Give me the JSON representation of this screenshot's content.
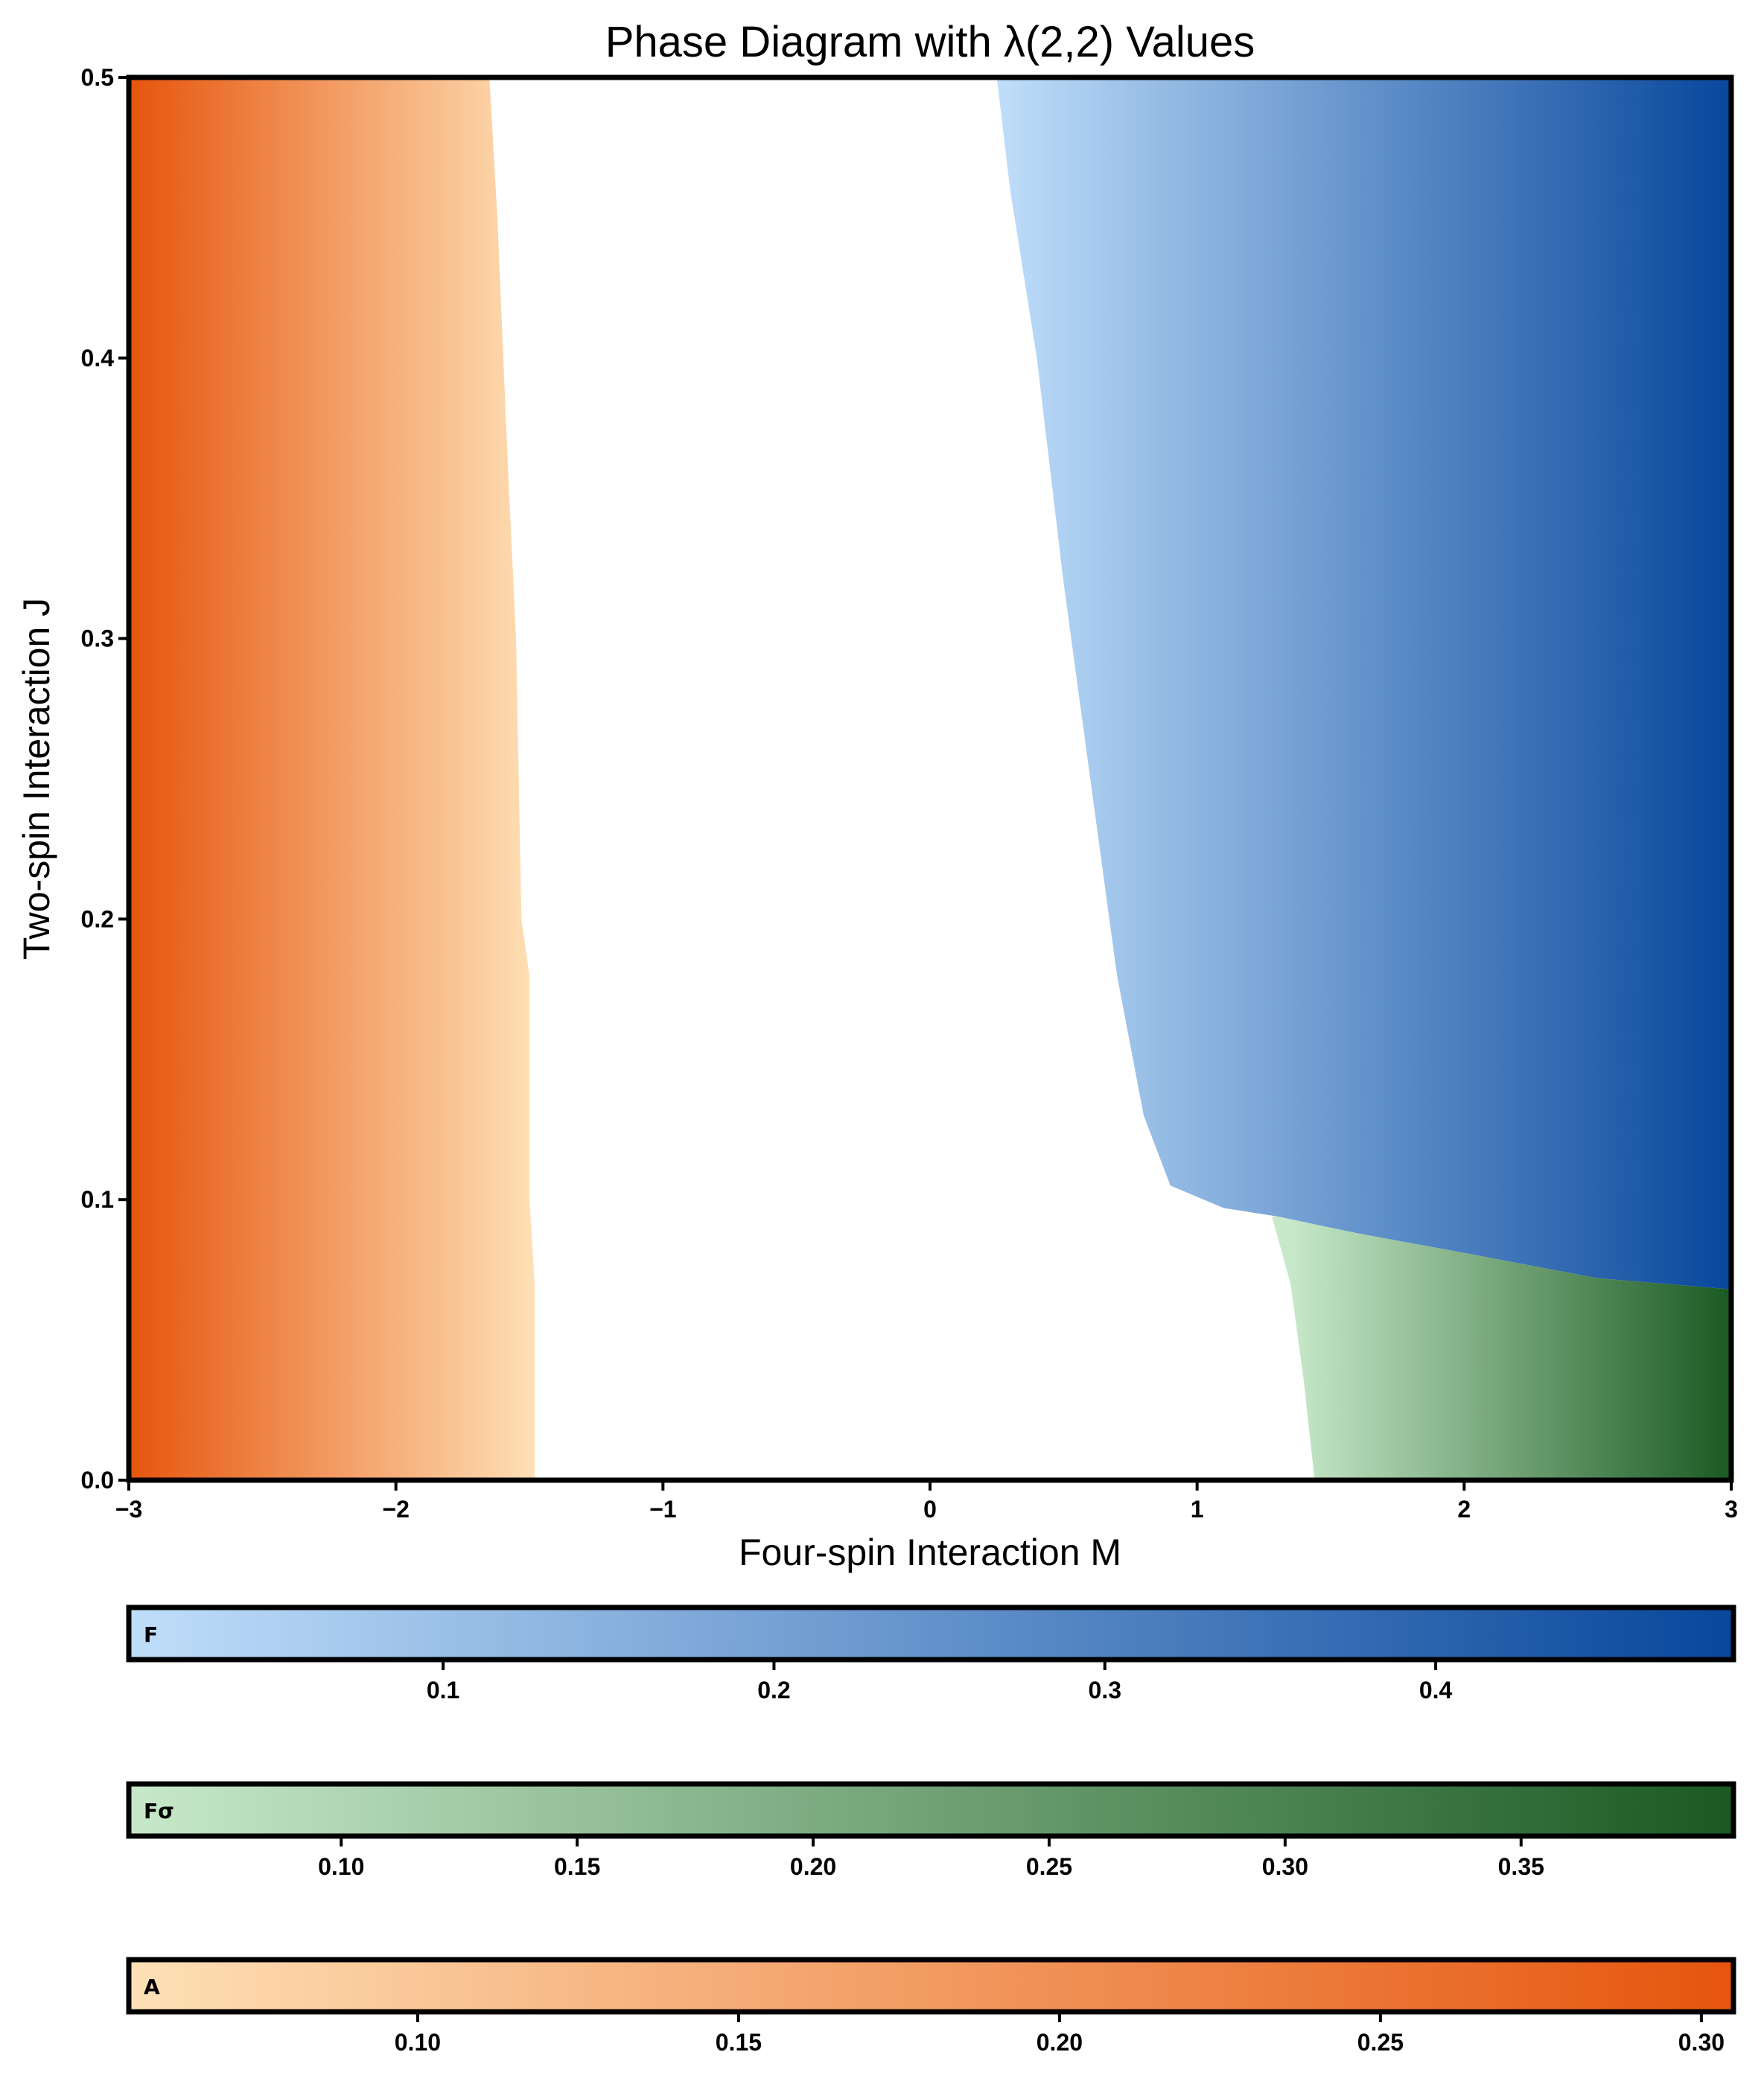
{
  "chart_data": {
    "type": "heatmap",
    "title": "Phase Diagram with λ(2,2) Values",
    "xlabel": "Four-spin Interaction M",
    "ylabel": "Two-spin Interaction J",
    "xlim": [
      -3,
      3
    ],
    "ylim": [
      0,
      0.5
    ],
    "x_ticks": [
      -3,
      -2,
      -1,
      0,
      1,
      2,
      3
    ],
    "x_tick_labels": [
      "−3",
      "−2",
      "−1",
      "0",
      "1",
      "2",
      "3"
    ],
    "y_ticks": [
      0,
      0.1,
      0.2,
      0.3,
      0.4,
      0.5
    ],
    "y_tick_labels": [
      "0.0",
      "0.1",
      "0.2",
      "0.3",
      "0.4",
      "0.5"
    ],
    "grid": false,
    "regions": [
      {
        "name": "A",
        "description_of_boundary": "right edge M vs J",
        "boundary": [
          [
            -1.48,
            0.0
          ],
          [
            -1.48,
            0.07
          ],
          [
            -1.5,
            0.1
          ],
          [
            -1.5,
            0.18
          ],
          [
            -1.53,
            0.2
          ],
          [
            -1.55,
            0.3
          ],
          [
            -1.58,
            0.36
          ],
          [
            -1.62,
            0.45
          ],
          [
            -1.65,
            0.5
          ]
        ],
        "colors": [
          "#fee0b6",
          "#e6550d"
        ],
        "color_direction": "right-to-left"
      },
      {
        "name": "F",
        "boundary_left": [
          [
            0.25,
            0.5
          ],
          [
            0.3,
            0.46
          ],
          [
            0.4,
            0.4
          ],
          [
            0.5,
            0.32
          ],
          [
            0.6,
            0.25
          ],
          [
            0.7,
            0.18
          ],
          [
            0.8,
            0.13
          ],
          [
            0.9,
            0.105
          ],
          [
            1.1,
            0.097
          ],
          [
            1.3,
            0.094
          ]
        ],
        "boundary_bottom": [
          [
            1.3,
            0.094
          ],
          [
            1.6,
            0.088
          ],
          [
            2.0,
            0.081
          ],
          [
            2.5,
            0.072
          ],
          [
            3.0,
            0.068
          ]
        ],
        "colors": [
          "#bfdefa",
          "#08479c"
        ]
      },
      {
        "name": "Fσ",
        "boundary_left": [
          [
            1.28,
            0.094
          ],
          [
            1.35,
            0.07
          ],
          [
            1.4,
            0.035
          ],
          [
            1.44,
            0.0
          ]
        ],
        "colors": [
          "#c7e9c9",
          "#1a5a22"
        ]
      }
    ],
    "colorbars": [
      {
        "label": "F",
        "range": [
          0.005,
          0.49
        ],
        "ticks": [
          0.1,
          0.2,
          0.3,
          0.4
        ],
        "tick_labels": [
          "0.1",
          "0.2",
          "0.3",
          "0.4"
        ],
        "colors": [
          "#bfdefa",
          "#08479c"
        ]
      },
      {
        "label": "Fσ",
        "range": [
          0.055,
          0.395
        ],
        "ticks": [
          0.1,
          0.15,
          0.2,
          0.25,
          0.3,
          0.35
        ],
        "tick_labels": [
          "0.10",
          "0.15",
          "0.20",
          "0.25",
          "0.30",
          "0.35"
        ],
        "colors": [
          "#c7e9c9",
          "#1a5a22"
        ]
      },
      {
        "label": "A",
        "range": [
          0.055,
          0.305
        ],
        "ticks": [
          0.1,
          0.15,
          0.2,
          0.25,
          0.3
        ],
        "tick_labels": [
          "0.10",
          "0.15",
          "0.20",
          "0.25",
          "0.30"
        ],
        "colors": [
          "#fee0b6",
          "#e6550d"
        ]
      }
    ]
  }
}
